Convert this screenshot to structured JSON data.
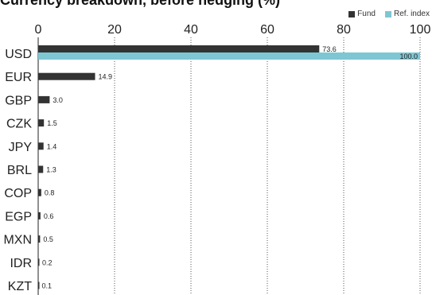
{
  "title": "Currency breakdown, before hedging (%)",
  "legend": [
    {
      "name": "Fund",
      "color": "#333333"
    },
    {
      "name": "Ref. index",
      "color": "#7fc6d3"
    }
  ],
  "chart_data": {
    "type": "bar",
    "orientation": "horizontal",
    "title": "Currency breakdown, before hedging (%)",
    "xlabel": "",
    "ylabel": "",
    "xlim": [
      0,
      100
    ],
    "x_ticks": [
      0,
      20,
      40,
      60,
      80,
      100
    ],
    "grid": "vertical dotted",
    "legend_position": "top-right",
    "categories": [
      "USD",
      "EUR",
      "GBP",
      "CZK",
      "JPY",
      "BRL",
      "COP",
      "EGP",
      "MXN",
      "IDR",
      "KZT"
    ],
    "series": [
      {
        "name": "Fund",
        "color": "#333333",
        "values": [
          73.6,
          14.9,
          3.0,
          1.5,
          1.4,
          1.3,
          0.8,
          0.6,
          0.5,
          0.2,
          0.1
        ],
        "labels": [
          "73.6",
          "14.9",
          "3.0",
          "1.5",
          "1.4",
          "1.3",
          "0.8",
          "0.6",
          "0.5",
          "0.2",
          "0.1"
        ]
      },
      {
        "name": "Ref. index",
        "color": "#7fc6d3",
        "values": [
          100.0,
          null,
          null,
          null,
          null,
          null,
          null,
          null,
          null,
          null,
          null
        ],
        "labels": [
          "100.0",
          "",
          "",
          "",
          "",
          "",
          "",
          "",
          "",
          "",
          ""
        ]
      }
    ]
  }
}
